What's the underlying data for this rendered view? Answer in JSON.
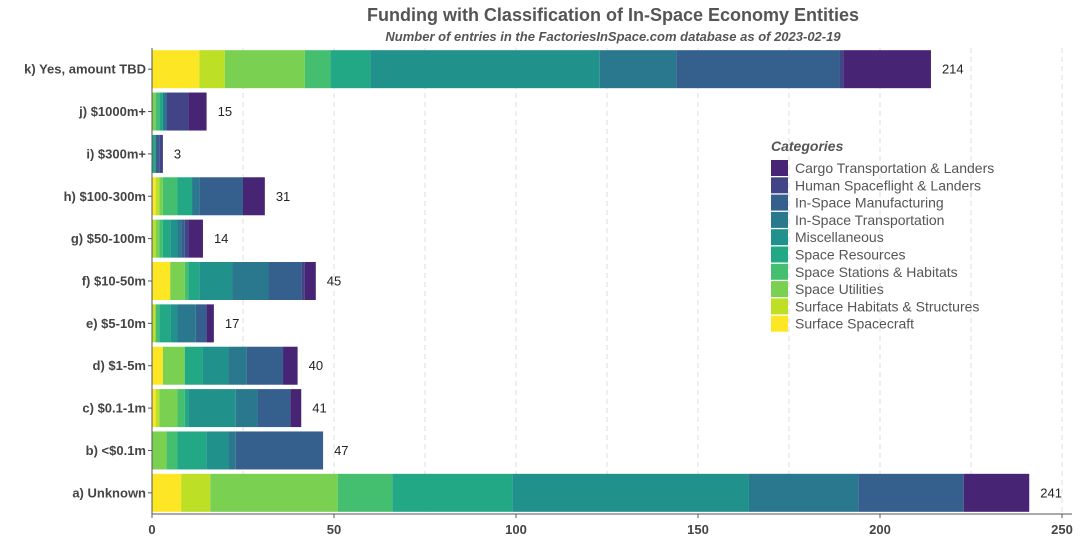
{
  "chart_data": {
    "type": "bar",
    "orientation": "horizontal",
    "stacked": true,
    "title": "Funding with Classification of In-Space Economy Entities",
    "subtitle": "Number of entries in the FactoriesInSpace.com database as of 2023-02-19",
    "xlim": [
      0,
      250
    ],
    "x_ticks": [
      0,
      50,
      100,
      150,
      200,
      250
    ],
    "grid": "vertical dashed",
    "legend_position": "right",
    "legend_title": "Categories",
    "categories": [
      "k) Yes, amount TBD",
      "j)  $1000m+",
      "i)  $300m+",
      "h)  $100-300m",
      "g)  $50-100m",
      "f)  $10-50m",
      "e)  $5-10m",
      "d)  $1-5m",
      "c)  $0.1-1m",
      "b)  <$0.1m",
      "a) Unknown"
    ],
    "totals": [
      214,
      15,
      3,
      31,
      14,
      45,
      17,
      40,
      41,
      47,
      241
    ],
    "series": [
      {
        "name": "Surface Spacecraft",
        "color": "#fde725",
        "values": [
          13,
          0,
          0,
          1,
          0,
          5,
          0,
          3,
          1,
          0,
          8
        ]
      },
      {
        "name": "Surface Habitats & Structures",
        "color": "#bddf26",
        "values": [
          7,
          0,
          0,
          1,
          1,
          0,
          1,
          0,
          1,
          0,
          8
        ]
      },
      {
        "name": "Space Utilities",
        "color": "#7ad151",
        "values": [
          22,
          1,
          0,
          1,
          1,
          4,
          0,
          6,
          5,
          4,
          35
        ]
      },
      {
        "name": "Space Stations & Habitats",
        "color": "#44bf70",
        "values": [
          7,
          1,
          0,
          4,
          1,
          1,
          1,
          0,
          2,
          3,
          15
        ]
      },
      {
        "name": "Space Resources",
        "color": "#22a884",
        "values": [
          11,
          1,
          1,
          4,
          2,
          3,
          3,
          5,
          1,
          8,
          33
        ]
      },
      {
        "name": "Miscellaneous",
        "color": "#21918c",
        "values": [
          63,
          0,
          0,
          0,
          2,
          9,
          2,
          7,
          13,
          6,
          65
        ]
      },
      {
        "name": "In-Space Transportation",
        "color": "#2a788e",
        "values": [
          21,
          1,
          0,
          2,
          1,
          10,
          5,
          5,
          6,
          2,
          30
        ]
      },
      {
        "name": "In-Space Manufacturing",
        "color": "#355f8d",
        "values": [
          45,
          0,
          1,
          12,
          1,
          9,
          3,
          10,
          9,
          24,
          29
        ]
      },
      {
        "name": "Human Spaceflight & Landers",
        "color": "#414487",
        "values": [
          1,
          6,
          1,
          0,
          1,
          1,
          0,
          0,
          0,
          0,
          0
        ]
      },
      {
        "name": "Cargo Transportation & Landers",
        "color": "#482475",
        "values": [
          24,
          5,
          0,
          6,
          4,
          3,
          2,
          4,
          3,
          0,
          18
        ]
      }
    ],
    "legend_order": [
      "Cargo Transportation & Landers",
      "Human Spaceflight & Landers",
      "In-Space Manufacturing",
      "In-Space Transportation",
      "Miscellaneous",
      "Space Resources",
      "Space Stations & Habitats",
      "Space Utilities",
      "Surface Habitats & Structures",
      "Surface Spacecraft"
    ]
  }
}
